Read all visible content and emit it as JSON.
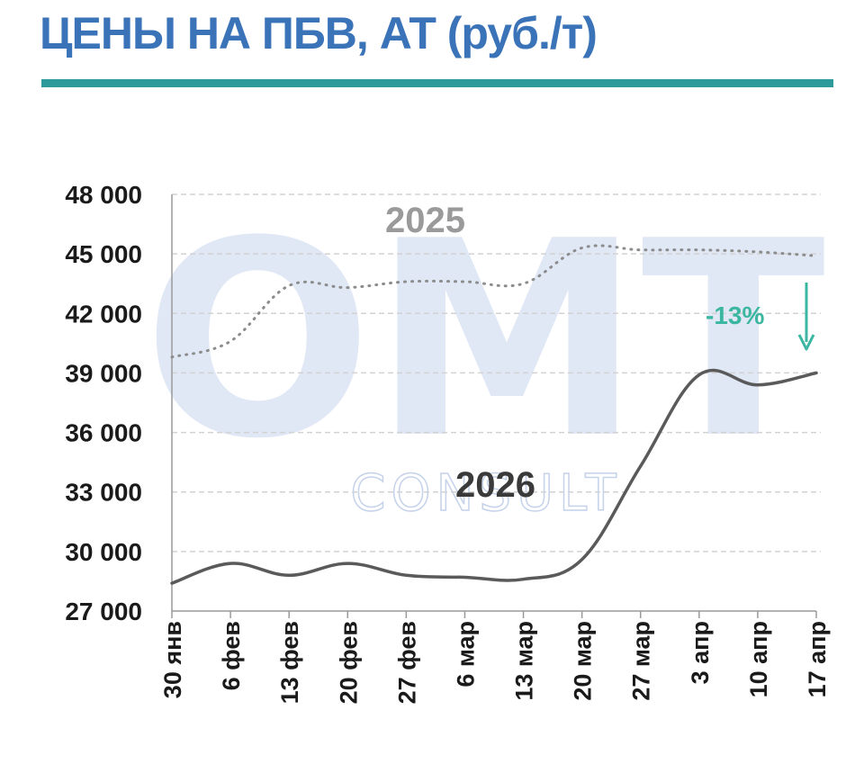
{
  "header": {
    "title": "ЦЕНЫ НА ПБВ, АТ (руб./т)"
  },
  "watermark": {
    "big": "OMT",
    "small": "CONSULT"
  },
  "chart_data": {
    "type": "line",
    "title": "ЦЕНЫ НА ПБВ, АТ (руб./т)",
    "categories": [
      "30 янв",
      "6 фев",
      "13 фев",
      "20 фев",
      "27 фев",
      "6 мар",
      "13 мар",
      "20 мар",
      "27 мар",
      "3 апр",
      "10 апр",
      "17 апр"
    ],
    "ylim": [
      27000,
      48000
    ],
    "yticks": [
      27000,
      30000,
      33000,
      36000,
      39000,
      42000,
      45000,
      48000
    ],
    "ytick_labels": [
      "27 000",
      "30 000",
      "33 000",
      "36 000",
      "39 000",
      "42 000",
      "45 000",
      "48 000"
    ],
    "grid": true,
    "series": [
      {
        "name": "2025",
        "style": "dotted",
        "color": "#8c8c8c",
        "values": [
          39800,
          40600,
          43400,
          43300,
          43600,
          43600,
          43500,
          45300,
          45200,
          45200,
          45100,
          44900
        ]
      },
      {
        "name": "2026",
        "style": "solid",
        "color": "#5a5a5a",
        "values": [
          28400,
          29400,
          28800,
          29400,
          28800,
          28700,
          28600,
          29600,
          34300,
          38900,
          38400,
          39000
        ]
      }
    ],
    "annotations": [
      {
        "text": "-13%",
        "type": "down-arrow",
        "color": "#3bb6a0",
        "x_category": "17 апр"
      }
    ]
  }
}
